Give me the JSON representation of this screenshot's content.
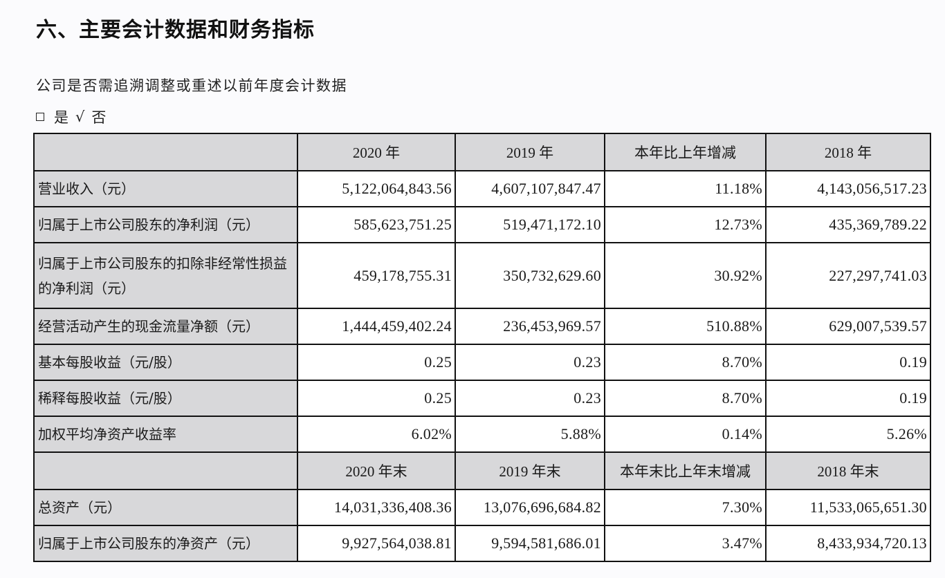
{
  "document": {
    "title": "六、主要会计数据和财务指标",
    "question": "公司是否需追溯调整或重述以前年度会计数据",
    "options": {
      "yes_symbol": "□",
      "yes_label": "是",
      "no_symbol": "√",
      "no_label": "否",
      "selected": "否"
    }
  },
  "table": {
    "header1": [
      "",
      "2020 年",
      "2019 年",
      "本年比上年增减",
      "2018 年"
    ],
    "rows1": [
      {
        "label": "营业收入（元）",
        "values": [
          "5,122,064,843.56",
          "4,607,107,847.47",
          "11.18%",
          "4,143,056,517.23"
        ]
      },
      {
        "label": "归属于上市公司股东的净利润（元）",
        "values": [
          "585,623,751.25",
          "519,471,172.10",
          "12.73%",
          "435,369,789.22"
        ]
      },
      {
        "label": "归属于上市公司股东的扣除非经常性损益的净利润（元）",
        "values": [
          "459,178,755.31",
          "350,732,629.60",
          "30.92%",
          "227,297,741.03"
        ]
      },
      {
        "label": "经营活动产生的现金流量净额（元）",
        "values": [
          "1,444,459,402.24",
          "236,453,969.57",
          "510.88%",
          "629,007,539.57"
        ]
      },
      {
        "label": "基本每股收益（元/股）",
        "values": [
          "0.25",
          "0.23",
          "8.70%",
          "0.19"
        ]
      },
      {
        "label": "稀释每股收益（元/股）",
        "values": [
          "0.25",
          "0.23",
          "8.70%",
          "0.19"
        ]
      },
      {
        "label": "加权平均净资产收益率",
        "values": [
          "6.02%",
          "5.88%",
          "0.14%",
          "5.26%"
        ]
      }
    ],
    "header2": [
      "",
      "2020 年末",
      "2019 年末",
      "本年末比上年末增减",
      "2018 年末"
    ],
    "rows2": [
      {
        "label": "总资产（元）",
        "values": [
          "14,031,336,408.36",
          "13,076,696,684.82",
          "7.30%",
          "11,533,065,651.30"
        ]
      },
      {
        "label": "归属于上市公司股东的净资产（元）",
        "values": [
          "9,927,564,038.81",
          "9,594,581,686.01",
          "3.47%",
          "8,433,934,720.13"
        ]
      }
    ]
  }
}
